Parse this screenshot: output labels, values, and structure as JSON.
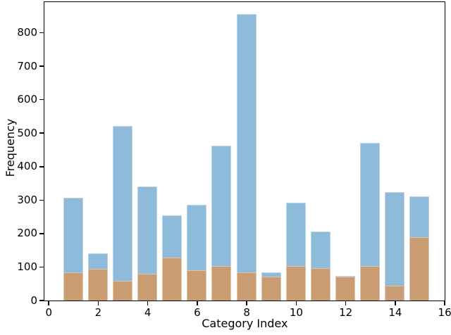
{
  "chart_data": {
    "type": "bar",
    "subtype": "overlaid-histogram",
    "title": "",
    "xlabel": "Category Index",
    "ylabel": "Frequency",
    "categories": [
      1,
      2,
      3,
      4,
      5,
      6,
      7,
      8,
      9,
      10,
      11,
      12,
      13,
      14,
      15
    ],
    "series": [
      {
        "name": "blue-series",
        "color": "#8fbbda",
        "values": [
          305,
          140,
          520,
          340,
          254,
          284,
          462,
          855,
          83,
          292,
          205,
          72,
          470,
          322,
          310
        ]
      },
      {
        "name": "orange-series",
        "color": "#c99d71",
        "values": [
          84,
          94,
          58,
          79,
          128,
          89,
          103,
          83,
          70,
          103,
          95,
          71,
          103,
          44,
          188
        ]
      }
    ],
    "bar_width": 0.8,
    "xticks": [
      0,
      2,
      4,
      6,
      8,
      10,
      12,
      14,
      16
    ],
    "yticks": [
      0,
      100,
      200,
      300,
      400,
      500,
      600,
      700,
      800
    ],
    "xlim": [
      -0.16,
      16.0
    ],
    "ylim": [
      0,
      890
    ],
    "grid": false,
    "legend": "none",
    "axis_color": "#000000",
    "background_color": "#ffffff"
  }
}
